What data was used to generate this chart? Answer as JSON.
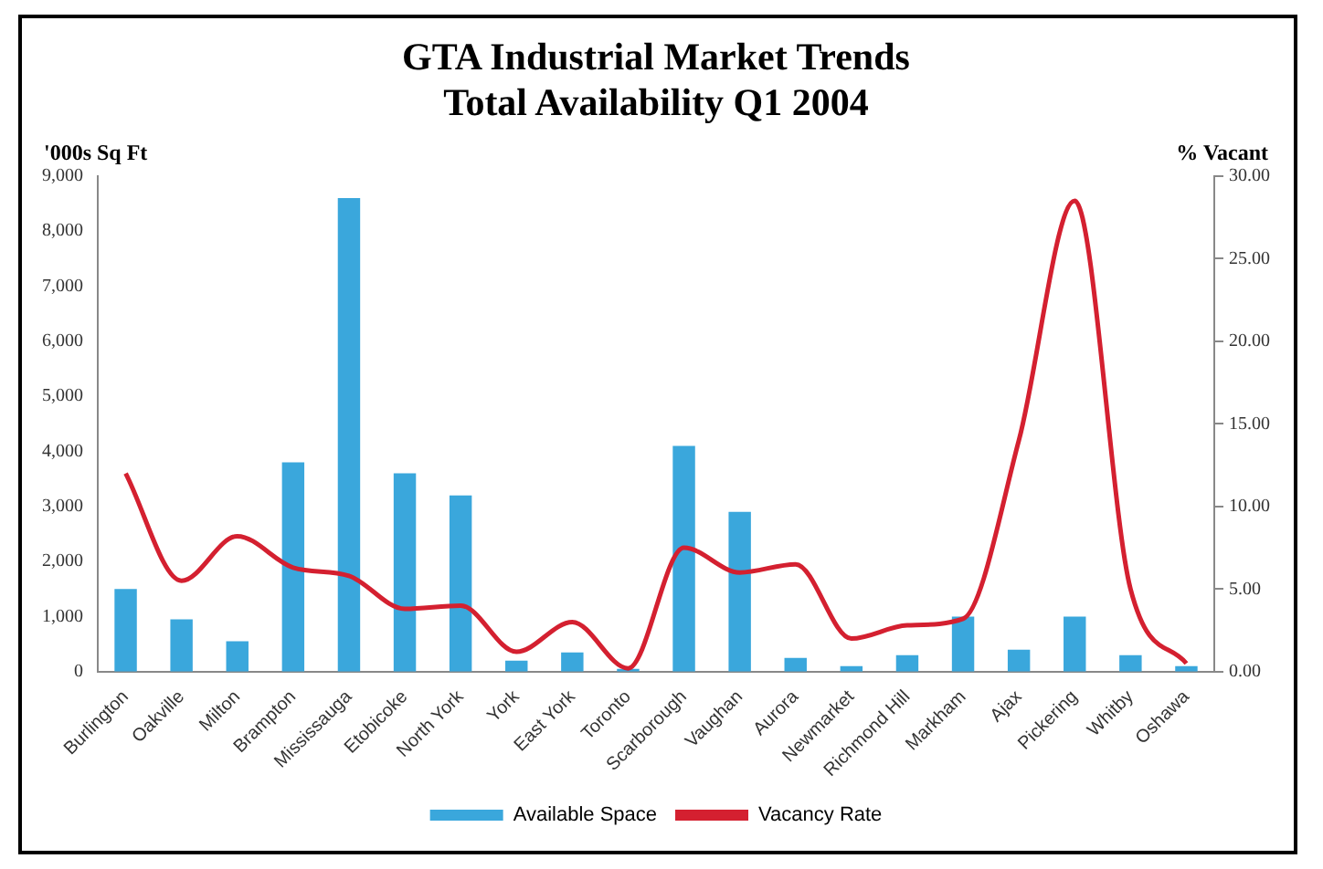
{
  "chart_data": {
    "type": "bar",
    "title": "GTA Industrial Market Trends",
    "subtitle": "Total Availability Q1 2004",
    "ylabel": "'000s Sq Ft",
    "y2label": "% Vacant",
    "categories": [
      "Burlington",
      "Oakville",
      "Milton",
      "Brampton",
      "Mississauga",
      "Etobicoke",
      "North York",
      "York",
      "East York",
      "Toronto",
      "Scarborough",
      "Vaughan",
      "Aurora",
      "Newmarket",
      "Richmond Hill",
      "Markham",
      "Ajax",
      "Pickering",
      "Whitby",
      "Oshawa"
    ],
    "series": [
      {
        "name": "Available Space",
        "color": "#3aa7dc",
        "values": [
          1500,
          950,
          550,
          3800,
          8600,
          3600,
          3200,
          200,
          350,
          50,
          4100,
          2900,
          250,
          100,
          300,
          1000,
          400,
          1000,
          300,
          100
        ]
      },
      {
        "name": "Vacancy Rate",
        "type": "line",
        "axis": "y2",
        "color": "#d42030",
        "values": [
          12,
          5.5,
          8.2,
          6.3,
          5.8,
          3.8,
          4,
          1.2,
          3,
          0.2,
          7.5,
          6,
          6.5,
          2,
          2.8,
          3.2,
          14,
          28.5,
          5,
          0.5
        ]
      }
    ],
    "ylim": [
      0,
      9000
    ],
    "yticks": [
      {
        "value": 0,
        "label": "0"
      },
      {
        "value": 1000,
        "label": "1,000"
      },
      {
        "value": 2000,
        "label": "2,000"
      },
      {
        "value": 3000,
        "label": "3,000"
      },
      {
        "value": 4000,
        "label": "4,000"
      },
      {
        "value": 5000,
        "label": "5,000"
      },
      {
        "value": 6000,
        "label": "6,000"
      },
      {
        "value": 7000,
        "label": "7,000"
      },
      {
        "value": 8000,
        "label": "8,000"
      },
      {
        "value": 9000,
        "label": "9,000"
      }
    ],
    "y2lim": [
      0,
      30
    ],
    "y2ticks": [
      {
        "value": 0,
        "label": "0.00"
      },
      {
        "value": 5,
        "label": "5.00"
      },
      {
        "value": 10,
        "label": "10.00"
      },
      {
        "value": 15,
        "label": "15.00"
      },
      {
        "value": 20,
        "label": "20.00"
      },
      {
        "value": 25,
        "label": "25.00"
      },
      {
        "value": 30,
        "label": "30.00"
      }
    ],
    "grid": false,
    "legend": "bottom",
    "marker": "none"
  }
}
